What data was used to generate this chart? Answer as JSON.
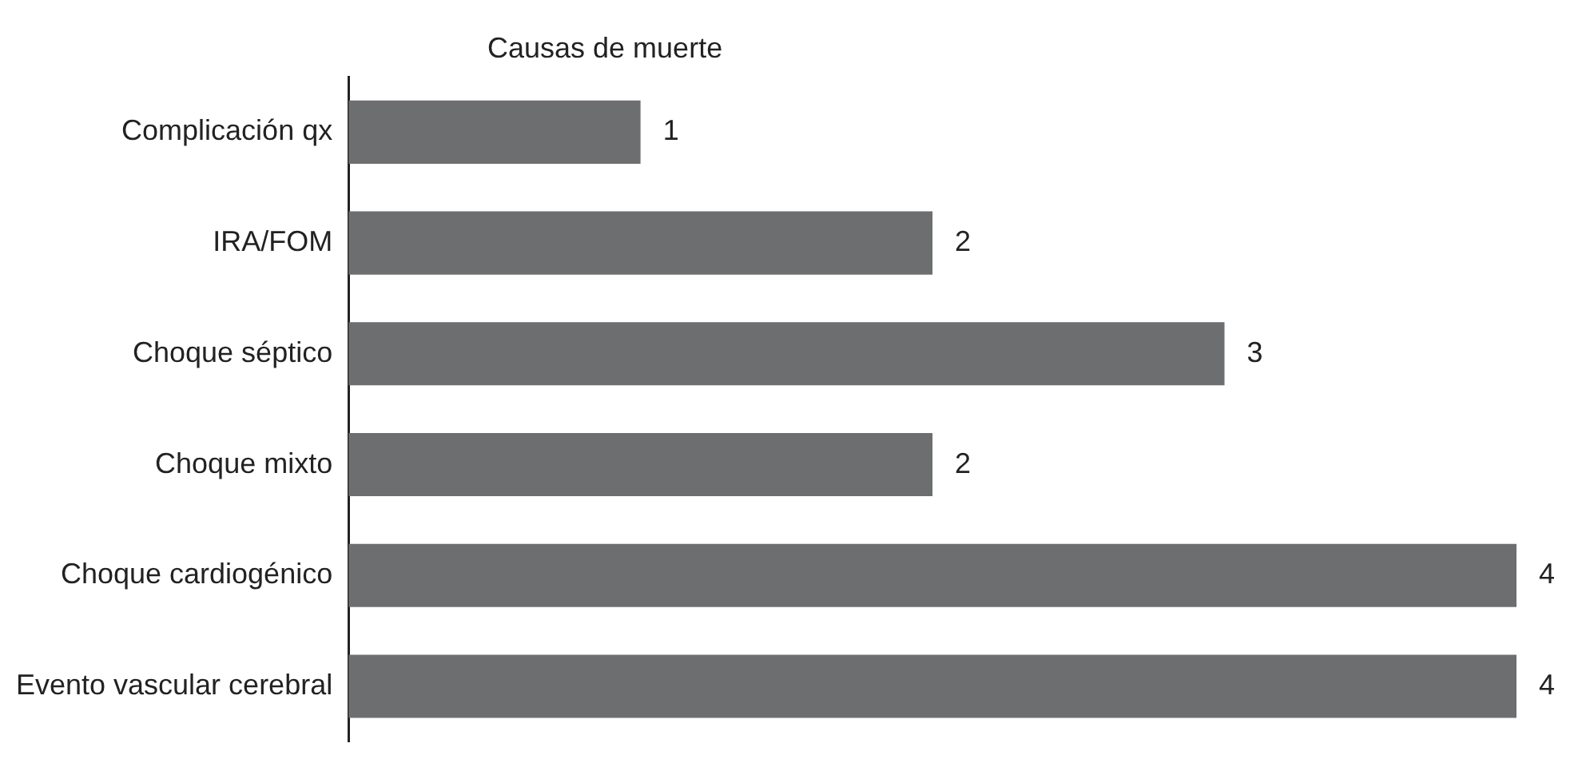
{
  "chart_data": {
    "type": "bar",
    "orientation": "horizontal",
    "title": "Causas de muerte",
    "categories": [
      "Complicación qx",
      "IRA/FOM",
      "Choque séptico",
      "Choque mixto",
      "Choque cardiogénico",
      "Evento vascular cerebral"
    ],
    "values": [
      1,
      2,
      3,
      2,
      4,
      4
    ],
    "color": "#6d6e70",
    "data_labels": true,
    "legend": false
  }
}
